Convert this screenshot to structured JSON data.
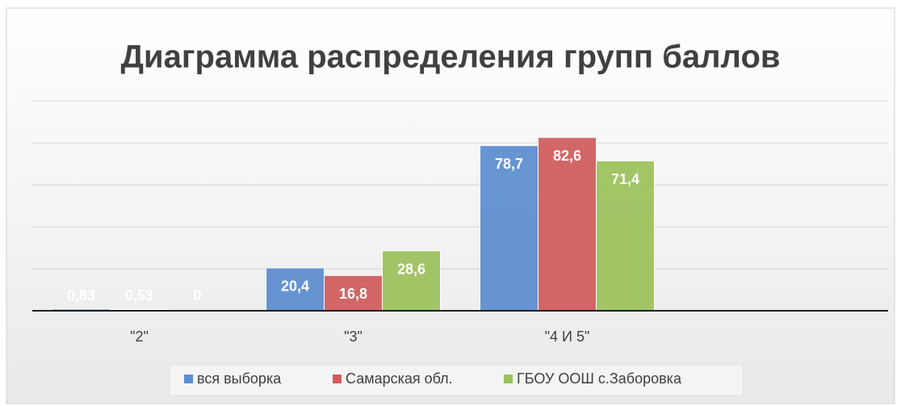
{
  "chart_data": {
    "type": "bar",
    "title": "Диаграмма распределения групп баллов",
    "categories": [
      "\"2\"",
      "\"3\"",
      "\"4 И 5\"",
      null
    ],
    "series": [
      {
        "name": "вся выборка",
        "color": "#5b8dd0",
        "values": [
          0.83,
          20.4,
          78.7,
          null
        ],
        "value_labels": [
          "0,83",
          "20,4",
          "78,7",
          null
        ]
      },
      {
        "name": "Самарская обл.",
        "color": "#d05b5b",
        "values": [
          0.53,
          16.8,
          82.6,
          null
        ],
        "value_labels": [
          "0,53",
          "16,8",
          "82,6",
          null
        ]
      },
      {
        "name": "ГБОУ ООШ с.Заборовка",
        "color": "#9bc25a",
        "values": [
          0,
          28.6,
          71.4,
          null
        ],
        "value_labels": [
          "0",
          "28,6",
          "71,4",
          null
        ]
      }
    ],
    "ylim": [
      0,
      100
    ],
    "yticks": [
      0,
      20,
      40,
      60,
      80,
      100
    ],
    "grid": true,
    "legend": "bottom"
  }
}
